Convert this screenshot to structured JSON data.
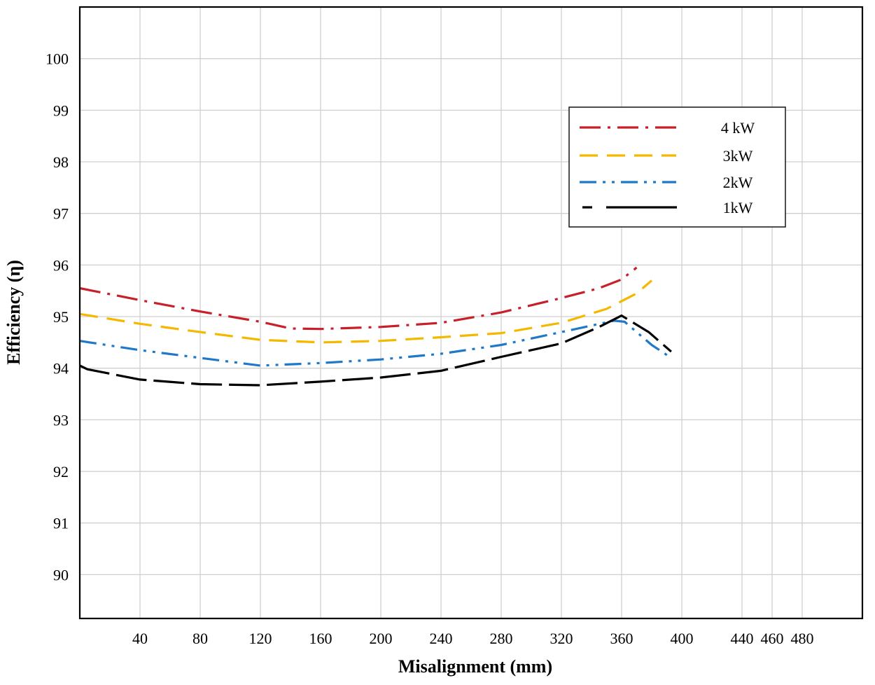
{
  "chart_data": {
    "type": "line",
    "title": "",
    "xlabel": "Misalignment (mm)",
    "ylabel": "Efficiency (η)",
    "xlim": [
      0,
      520
    ],
    "ylim": [
      89.15,
      101
    ],
    "x_ticks": [
      40,
      80,
      120,
      160,
      200,
      240,
      280,
      320,
      360,
      400,
      440,
      460,
      480
    ],
    "x_tick_labels": [
      "40",
      "80",
      "120",
      "160",
      "200",
      "240",
      "280",
      "320",
      "360",
      "400",
      "440",
      "460",
      "480"
    ],
    "y_ticks": [
      90,
      91,
      92,
      93,
      94,
      95,
      96,
      97,
      98,
      99,
      100
    ],
    "y_tick_labels": [
      "90",
      "91",
      "92",
      "93",
      "94",
      "95",
      "96",
      "97",
      "98",
      "99",
      "100"
    ],
    "grid": true,
    "legend_position": "top-right",
    "series": [
      {
        "name": "4 kW",
        "color": "#c8202a",
        "dash": "dash-dot",
        "x": [
          0,
          40,
          80,
          120,
          140,
          160,
          200,
          240,
          280,
          320,
          345,
          360,
          370
        ],
        "y": [
          95.55,
          95.32,
          95.1,
          94.9,
          94.77,
          94.76,
          94.8,
          94.88,
          95.08,
          95.36,
          95.55,
          95.72,
          95.95
        ]
      },
      {
        "name": "3kW",
        "color": "#f5b800",
        "dash": "dash",
        "x": [
          0,
          40,
          80,
          120,
          160,
          200,
          240,
          280,
          320,
          350,
          370,
          380
        ],
        "y": [
          95.05,
          94.86,
          94.7,
          94.55,
          94.5,
          94.53,
          94.6,
          94.68,
          94.88,
          95.15,
          95.45,
          95.7
        ]
      },
      {
        "name": "2kW",
        "color": "#1f78c8",
        "dash": "dash-dot-dot",
        "x": [
          0,
          40,
          80,
          120,
          160,
          200,
          240,
          280,
          320,
          355,
          362,
          380,
          393
        ],
        "y": [
          94.53,
          94.35,
          94.2,
          94.05,
          94.1,
          94.17,
          94.28,
          94.45,
          94.7,
          94.92,
          94.9,
          94.45,
          94.2
        ]
      },
      {
        "name": "1kW",
        "color": "#000000",
        "dash": "long-dash",
        "x": [
          0,
          5,
          40,
          80,
          120,
          160,
          200,
          240,
          280,
          320,
          345,
          360,
          378,
          393
        ],
        "y": [
          94.05,
          93.98,
          93.78,
          93.69,
          93.67,
          93.74,
          93.82,
          93.95,
          94.22,
          94.48,
          94.8,
          95.02,
          94.7,
          94.32
        ]
      }
    ]
  },
  "colors": {
    "grid": "#cfcfcf",
    "frame": "#000000",
    "background": "#ffffff"
  }
}
